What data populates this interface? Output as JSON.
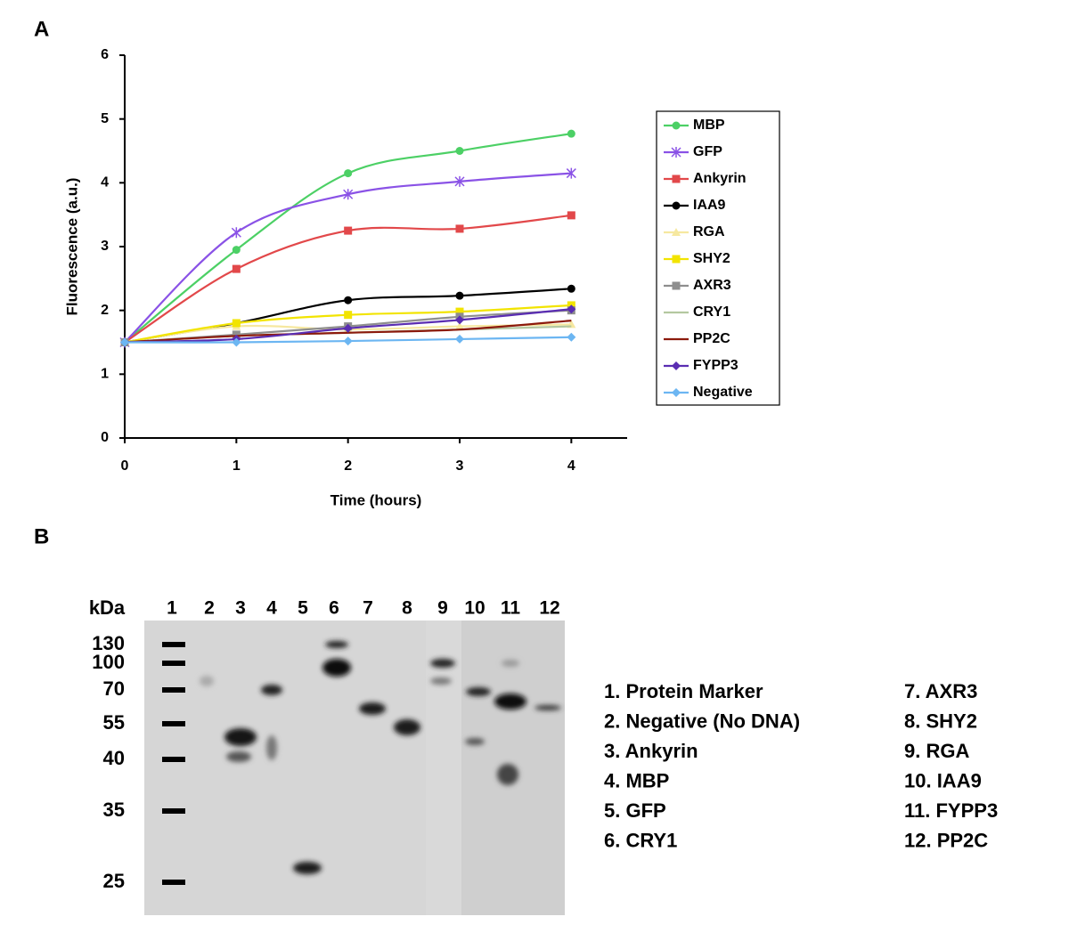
{
  "chart_data": {
    "type": "line",
    "panel_label": "A",
    "x_label": "Time (hours)",
    "y_label": "Fluorescence (a.u.)",
    "x": [
      0,
      1,
      2,
      3,
      4
    ],
    "xlim": [
      0,
      4.5
    ],
    "xticks": [
      0,
      1,
      2,
      3,
      4
    ],
    "ylim": [
      0,
      6
    ],
    "yticks": [
      0,
      1,
      2,
      3,
      4,
      5,
      6
    ],
    "smooth": true,
    "legend": "right",
    "series": [
      {
        "name": "MBP",
        "color": "#4cd065",
        "marker": "circle",
        "values": [
          1.5,
          2.95,
          4.15,
          4.5,
          4.77
        ]
      },
      {
        "name": "GFP",
        "color": "#8a52e6",
        "marker": "asterisk",
        "values": [
          1.5,
          3.22,
          3.82,
          4.02,
          4.15
        ]
      },
      {
        "name": "Ankyrin",
        "color": "#e2484a",
        "marker": "square",
        "values": [
          1.5,
          2.65,
          3.25,
          3.28,
          3.49
        ]
      },
      {
        "name": "IAA9",
        "color": "#000000",
        "marker": "circle",
        "values": [
          1.5,
          1.8,
          2.16,
          2.23,
          2.34
        ]
      },
      {
        "name": "RGA",
        "color": "#f6e8a0",
        "marker": "triangle",
        "values": [
          1.5,
          1.75,
          1.7,
          1.75,
          1.78
        ]
      },
      {
        "name": "SHY2",
        "color": "#f2e400",
        "marker": "square",
        "values": [
          1.5,
          1.8,
          1.93,
          1.98,
          2.08
        ]
      },
      {
        "name": "AXR3",
        "color": "#8e8e8e",
        "marker": "square",
        "values": [
          1.5,
          1.62,
          1.75,
          1.9,
          2.0
        ]
      },
      {
        "name": "CRY1",
        "color": "#b4c8a0",
        "marker": "none",
        "values": [
          1.5,
          1.6,
          1.65,
          1.7,
          1.75
        ]
      },
      {
        "name": "PP2C",
        "color": "#8c1a0c",
        "marker": "none",
        "values": [
          1.5,
          1.6,
          1.65,
          1.7,
          1.84
        ]
      },
      {
        "name": "FYPP3",
        "color": "#5a2db2",
        "marker": "diamond",
        "values": [
          1.5,
          1.55,
          1.72,
          1.85,
          2.02
        ]
      },
      {
        "name": "Negative",
        "color": "#6cb6f2",
        "marker": "diamond",
        "values": [
          1.5,
          1.5,
          1.52,
          1.55,
          1.58
        ]
      }
    ]
  },
  "blot": {
    "panel_label": "B",
    "unit": "kDa",
    "lanes": [
      "1",
      "2",
      "3",
      "4",
      "5",
      "6",
      "7",
      "8",
      "9",
      "10",
      "11",
      "12"
    ],
    "marker_labels": [
      "130",
      "100",
      "70",
      "55",
      "40",
      "35",
      "25"
    ],
    "legend_left": [
      "1. Protein Marker",
      "2. Negative (No DNA)",
      "3. Ankyrin",
      "4. MBP",
      "5. GFP",
      "6. CRY1"
    ],
    "legend_right": [
      "7. AXR3",
      "8. SHY2",
      "9. RGA",
      "10. IAA9",
      "11. FYPP3",
      "12. PP2C"
    ]
  }
}
